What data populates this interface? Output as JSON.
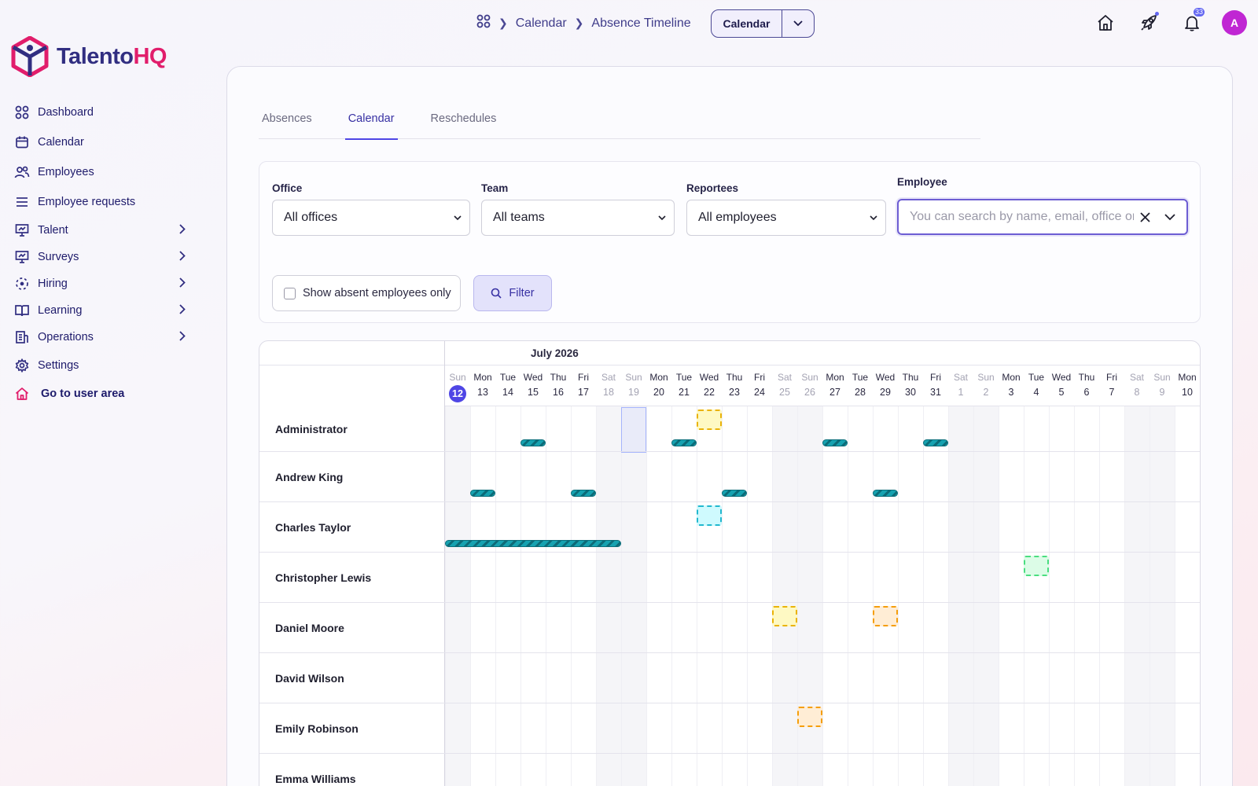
{
  "brand": {
    "name_part1": "Talento",
    "name_part2": "HQ",
    "colors": {
      "primary": "#312e81",
      "accent": "#e11d6b"
    }
  },
  "sidebar": {
    "items": [
      {
        "label": "Dashboard",
        "icon": "dashboard-grid-icon",
        "expandable": false
      },
      {
        "label": "Calendar",
        "icon": "calendar-icon",
        "expandable": false
      },
      {
        "label": "Employees",
        "icon": "people-icon",
        "expandable": false
      },
      {
        "label": "Employee requests",
        "icon": "list-icon",
        "expandable": false
      },
      {
        "label": "Talent",
        "icon": "presentation-icon",
        "expandable": true
      },
      {
        "label": "Surveys",
        "icon": "presentation-icon",
        "expandable": true
      },
      {
        "label": "Hiring",
        "icon": "dashed-circle-icon",
        "expandable": true
      },
      {
        "label": "Learning",
        "icon": "book-icon",
        "expandable": true
      },
      {
        "label": "Operations",
        "icon": "building-icon",
        "expandable": true
      },
      {
        "label": "Settings",
        "icon": "gear-icon",
        "expandable": false
      },
      {
        "label": "Go to user area",
        "icon": "home-icon",
        "expandable": false
      }
    ]
  },
  "header": {
    "breadcrumb": [
      "Calendar",
      "Absence Timeline"
    ],
    "view_select": "Calendar",
    "notifications_count": "33",
    "avatar_initial": "A"
  },
  "tabs": [
    {
      "label": "Absences",
      "active": false
    },
    {
      "label": "Calendar",
      "active": true
    },
    {
      "label": "Reschedules",
      "active": false
    }
  ],
  "filters": {
    "office": {
      "label": "Office",
      "value": "All offices"
    },
    "team": {
      "label": "Team",
      "value": "All teams"
    },
    "reportees": {
      "label": "Reportees",
      "value": "All employees"
    },
    "employee": {
      "label": "Employee",
      "placeholder": "You can search by name, email, office or"
    },
    "absent_only_label": "Show absent employees only",
    "filter_button": "Filter"
  },
  "timeline": {
    "month": "July 2026",
    "days": [
      {
        "name": "Sun",
        "num": "12",
        "weekend": true,
        "today": true
      },
      {
        "name": "Mon",
        "num": "13",
        "weekend": false
      },
      {
        "name": "Tue",
        "num": "14",
        "weekend": false
      },
      {
        "name": "Wed",
        "num": "15",
        "weekend": false
      },
      {
        "name": "Thu",
        "num": "16",
        "weekend": false
      },
      {
        "name": "Fri",
        "num": "17",
        "weekend": false
      },
      {
        "name": "Sat",
        "num": "18",
        "weekend": true
      },
      {
        "name": "Sun",
        "num": "19",
        "weekend": true
      },
      {
        "name": "Mon",
        "num": "20",
        "weekend": false
      },
      {
        "name": "Tue",
        "num": "21",
        "weekend": false
      },
      {
        "name": "Wed",
        "num": "22",
        "weekend": false
      },
      {
        "name": "Thu",
        "num": "23",
        "weekend": false
      },
      {
        "name": "Fri",
        "num": "24",
        "weekend": false
      },
      {
        "name": "Sat",
        "num": "25",
        "weekend": true
      },
      {
        "name": "Sun",
        "num": "26",
        "weekend": true
      },
      {
        "name": "Mon",
        "num": "27",
        "weekend": false
      },
      {
        "name": "Tue",
        "num": "28",
        "weekend": false
      },
      {
        "name": "Wed",
        "num": "29",
        "weekend": false
      },
      {
        "name": "Thu",
        "num": "30",
        "weekend": false
      },
      {
        "name": "Fri",
        "num": "31",
        "weekend": false
      },
      {
        "name": "Sat",
        "num": "1",
        "weekend": true
      },
      {
        "name": "Sun",
        "num": "2",
        "weekend": true
      },
      {
        "name": "Mon",
        "num": "3",
        "weekend": false
      },
      {
        "name": "Tue",
        "num": "4",
        "weekend": false
      },
      {
        "name": "Wed",
        "num": "5",
        "weekend": false
      },
      {
        "name": "Thu",
        "num": "6",
        "weekend": false
      },
      {
        "name": "Fri",
        "num": "7",
        "weekend": false
      },
      {
        "name": "Sat",
        "num": "8",
        "weekend": true
      },
      {
        "name": "Sun",
        "num": "9",
        "weekend": true
      },
      {
        "name": "Mon",
        "num": "10",
        "weekend": false
      }
    ],
    "employees": [
      {
        "name": "Administrator",
        "bars": [
          [
            3,
            1
          ],
          [
            9,
            1
          ],
          [
            15,
            1
          ],
          [
            19,
            1
          ]
        ],
        "pending": [
          [
            10,
            "yellow"
          ]
        ]
      },
      {
        "name": "Andrew King",
        "bars": [
          [
            1,
            1
          ],
          [
            5,
            1
          ],
          [
            11,
            1
          ],
          [
            17,
            1
          ]
        ],
        "pending": []
      },
      {
        "name": "Charles Taylor",
        "bars": [
          [
            0,
            7
          ]
        ],
        "pending": [
          [
            10,
            "cyan"
          ]
        ]
      },
      {
        "name": "Christopher Lewis",
        "bars": [],
        "pending": [
          [
            23,
            "green"
          ]
        ]
      },
      {
        "name": "Daniel Moore",
        "bars": [],
        "pending": [
          [
            13,
            "yellow"
          ],
          [
            17,
            "orange"
          ]
        ]
      },
      {
        "name": "David Wilson",
        "bars": [],
        "pending": []
      },
      {
        "name": "Emily Robinson",
        "bars": [],
        "pending": [
          [
            14,
            "orange"
          ]
        ]
      },
      {
        "name": "Emma Williams",
        "bars": [],
        "pending": []
      }
    ],
    "highlight_day": 7
  }
}
